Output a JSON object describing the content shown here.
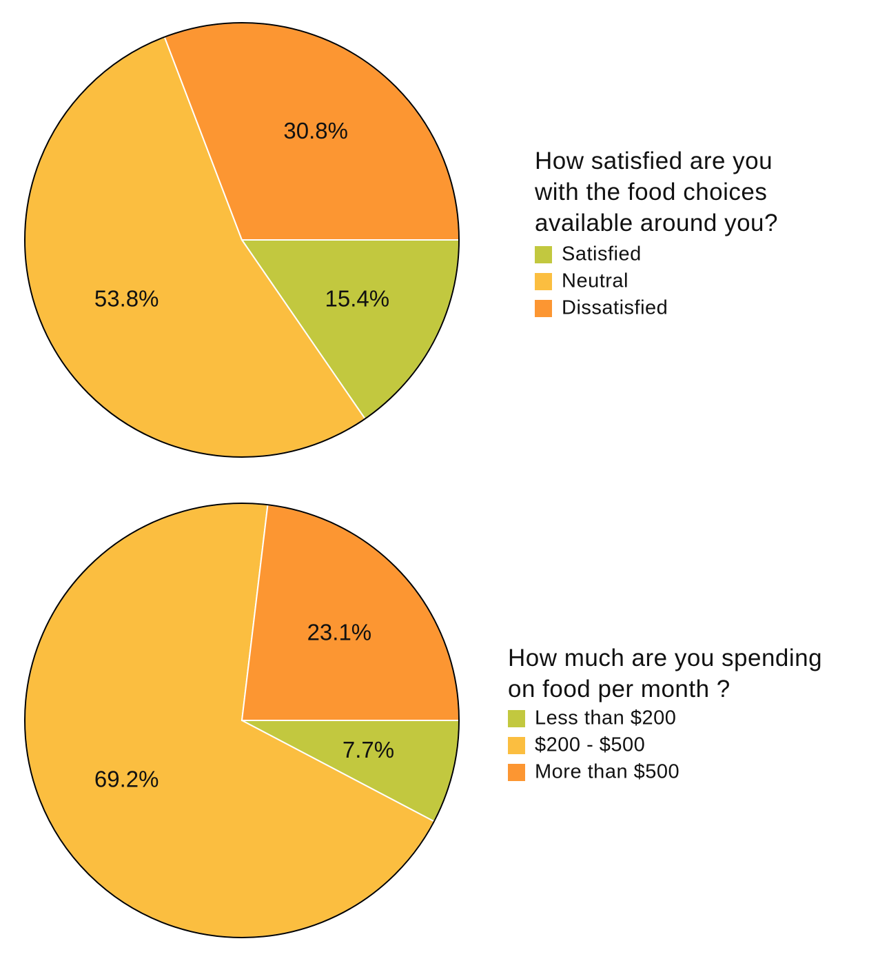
{
  "chart_data": [
    {
      "type": "pie",
      "title_lines": [
        "How satisfied are you",
        "with the food choices",
        "available around you?"
      ],
      "slices": [
        {
          "label": "Satisfied",
          "value": 15.4,
          "display": "15.4%",
          "color": "#C2C83F"
        },
        {
          "label": "Neutral",
          "value": 53.8,
          "display": "53.8%",
          "color": "#FBBE40"
        },
        {
          "label": "Dissatisfied",
          "value": 30.8,
          "display": "30.8%",
          "color": "#FC9632"
        }
      ]
    },
    {
      "type": "pie",
      "title_lines": [
        "How much are you spending",
        "on food per month ?"
      ],
      "slices": [
        {
          "label": "Less than $200",
          "value": 7.7,
          "display": "7.7%",
          "color": "#C2C83F"
        },
        {
          "label": "$200 - $500",
          "value": 69.2,
          "display": "69.2%",
          "color": "#FBBE40"
        },
        {
          "label": "More than $500",
          "value": 23.1,
          "display": "23.1%",
          "color": "#FC9632"
        }
      ]
    }
  ]
}
